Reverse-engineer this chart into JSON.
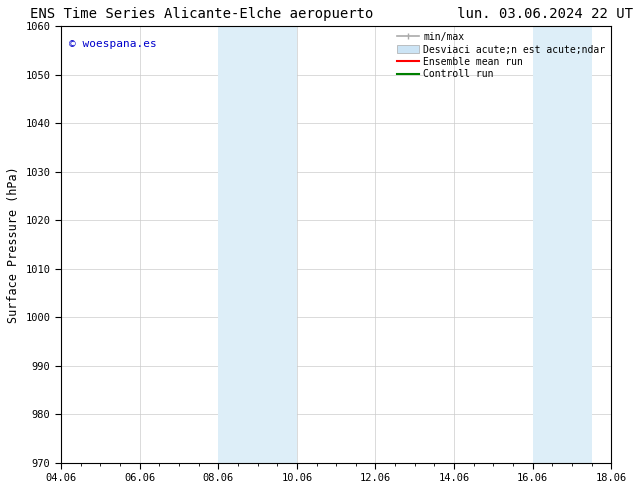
{
  "title_left": "ENS Time Series Alicante-Elche aeropuerto",
  "title_right": "lun. 03.06.2024 22 UTC",
  "ylabel": "Surface Pressure (hPa)",
  "xlabel_ticks": [
    "04.06",
    "06.06",
    "08.06",
    "10.06",
    "12.06",
    "14.06",
    "16.06",
    "18.06"
  ],
  "xtick_positions": [
    0,
    2,
    4,
    6,
    8,
    10,
    12,
    14
  ],
  "xlim": [
    0,
    14
  ],
  "ylim": [
    970,
    1060
  ],
  "yticks": [
    970,
    980,
    990,
    1000,
    1010,
    1020,
    1030,
    1040,
    1050,
    1060
  ],
  "shaded_regions": [
    {
      "x_start": 4,
      "x_end": 6,
      "color": "#ddeef8"
    },
    {
      "x_start": 12,
      "x_end": 13.5,
      "color": "#ddeef8"
    }
  ],
  "watermark_text": "© woespana.es",
  "watermark_color": "#0000cc",
  "legend_label_1": "min/max",
  "legend_label_2": "Desviaci acute;n est acute;ndar",
  "legend_label_3": "Ensemble mean run",
  "legend_label_4": "Controll run",
  "legend_color_1": "#aaaaaa",
  "legend_color_2": "#cce4f5",
  "legend_color_3": "#ff0000",
  "legend_color_4": "#008000",
  "bg_color": "#ffffff",
  "grid_color": "#cccccc",
  "title_fontsize": 10,
  "tick_fontsize": 7.5,
  "ylabel_fontsize": 8.5,
  "legend_fontsize": 7,
  "watermark_fontsize": 8
}
